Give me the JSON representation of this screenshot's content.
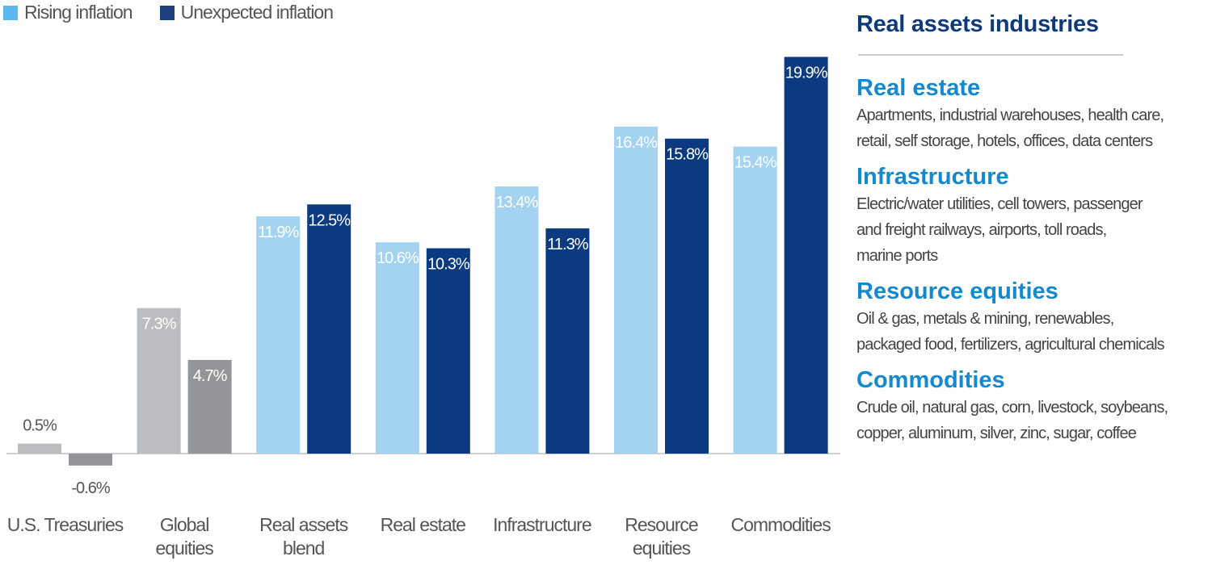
{
  "legend": {
    "items": [
      {
        "label": "Rising inflation",
        "color": "#5cb8ea"
      },
      {
        "label": "Unexpected inflation",
        "color": "#1d3f80"
      }
    ]
  },
  "chart_data": {
    "type": "bar",
    "title": "",
    "xlabel": "",
    "ylabel": "",
    "ylim": [
      -1,
      20
    ],
    "grid": false,
    "legend_position": "top-left",
    "categories": [
      [
        "U.S. Treasuries"
      ],
      [
        "Global",
        "equities"
      ],
      [
        "Real assets",
        "blend"
      ],
      [
        "Real estate"
      ],
      [
        "Infrastructure"
      ],
      [
        "Resource",
        "equities"
      ],
      [
        "Commodities"
      ]
    ],
    "series": [
      {
        "name": "Rising inflation",
        "values": [
          0.5,
          7.3,
          11.9,
          10.6,
          13.4,
          16.4,
          15.4
        ],
        "labels": [
          "0.5%",
          "7.3%",
          "11.9%",
          "10.6%",
          "13.4%",
          "16.4%",
          "15.4%"
        ]
      },
      {
        "name": "Unexpected inflation",
        "values": [
          -0.6,
          4.7,
          12.5,
          10.3,
          11.3,
          15.8,
          19.9
        ],
        "labels": [
          "-0.6%",
          "4.7%",
          "12.5%",
          "10.3%",
          "11.3%",
          "15.8%",
          "19.9%"
        ]
      }
    ],
    "colors": {
      "rising": "#a3d3f1",
      "unexpected": "#0b3a80",
      "rising_gray": "#bcbdc1",
      "unexpected_gray": "#939598",
      "gray_categories": [
        0,
        1
      ]
    }
  },
  "panel": {
    "title": "Real assets industries",
    "sections": [
      {
        "heading": "Real estate",
        "lines": [
          "Apartments, industrial warehouses, health care,",
          "retail, self storage, hotels, offices, data centers"
        ]
      },
      {
        "heading": "Infrastructure",
        "lines": [
          "Electric/water utilities, cell towers, passenger",
          "and freight railways, airports, toll roads,",
          "marine ports"
        ]
      },
      {
        "heading": "Resource equities",
        "lines": [
          "Oil & gas, metals & mining, renewables,",
          "packaged food, fertilizers, agricultural chemicals"
        ]
      },
      {
        "heading": "Commodities",
        "lines": [
          "Crude oil, natural gas, corn, livestock, soybeans,",
          "copper, aluminum, silver, zinc, sugar, coffee"
        ]
      }
    ]
  }
}
